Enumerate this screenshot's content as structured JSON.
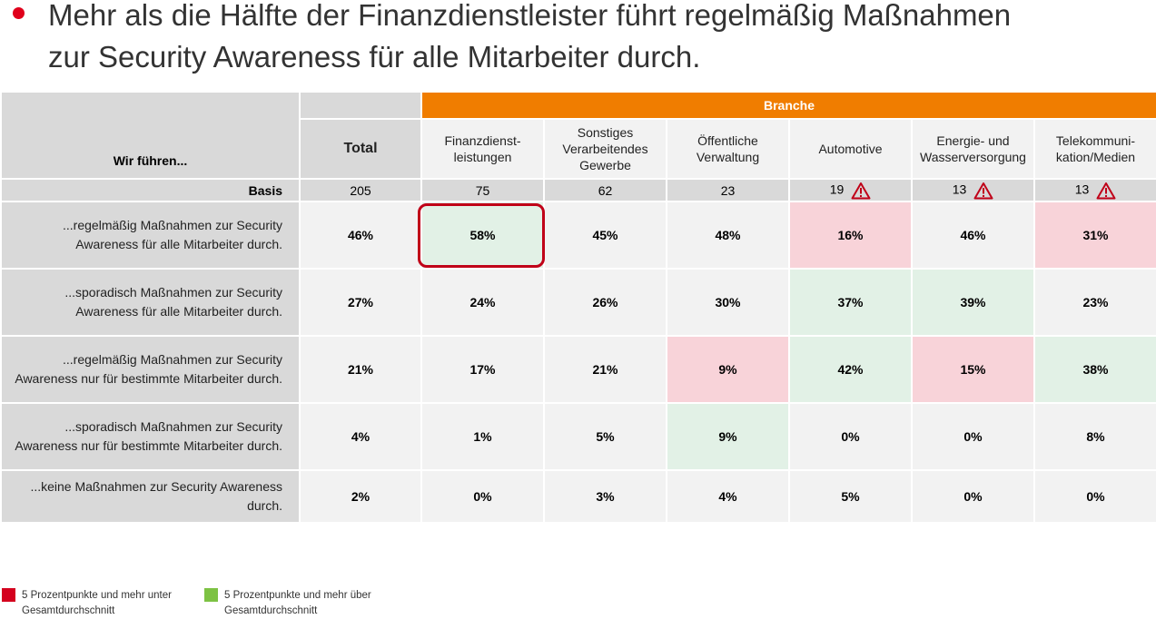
{
  "headline": "Mehr als die Hälfte der Finanzdienstleister führt regelmäßig Maßnahmen zur Security Awareness für alle Mitarbeiter durch.",
  "colors": {
    "accent_orange": "#f07d00",
    "bullet_red": "#e0001b",
    "below_avg": "#f8d3d9",
    "above_avg": "#e2f1e6",
    "legend_red": "#d4001e",
    "legend_green": "#7dc243"
  },
  "chart_data": {
    "type": "table",
    "group_header": "Branche",
    "row_header": "Wir führen...",
    "columns": [
      "Total",
      "Finanzdienst-leistungen",
      "Sonstiges Verarbeitendes Gewerbe",
      "Öffentliche Verwaltung",
      "Automotive",
      "Energie- und Wasserversorgung",
      "Telekommuni-kation/Medien"
    ],
    "basis_label": "Basis",
    "basis": [
      205,
      75,
      62,
      23,
      19,
      13,
      13
    ],
    "basis_warning": [
      false,
      false,
      false,
      false,
      true,
      true,
      true
    ],
    "rows": [
      {
        "label": "...regelmäßig Maßnahmen zur Security Awareness für alle Mitarbeiter durch.",
        "values": [
          "46%",
          "58%",
          "45%",
          "48%",
          "16%",
          "46%",
          "31%"
        ],
        "marks": [
          "",
          "green",
          "",
          "",
          "red",
          "",
          "red"
        ]
      },
      {
        "label": "...sporadisch Maßnahmen zur Security Awareness für alle Mitarbeiter durch.",
        "values": [
          "27%",
          "24%",
          "26%",
          "30%",
          "37%",
          "39%",
          "23%"
        ],
        "marks": [
          "",
          "",
          "",
          "",
          "green",
          "green",
          ""
        ]
      },
      {
        "label": "...regelmäßig Maßnahmen zur Security Awareness nur für bestimmte Mitarbeiter durch.",
        "values": [
          "21%",
          "17%",
          "21%",
          "9%",
          "42%",
          "15%",
          "38%"
        ],
        "marks": [
          "",
          "",
          "",
          "red",
          "green",
          "red",
          "green"
        ]
      },
      {
        "label": "...sporadisch Maßnahmen zur Security Awareness nur für bestimmte Mitarbeiter durch.",
        "values": [
          "4%",
          "1%",
          "5%",
          "9%",
          "0%",
          "0%",
          "8%"
        ],
        "marks": [
          "",
          "",
          "",
          "green",
          "",
          "",
          ""
        ]
      },
      {
        "label": "...keine Maßnahmen zur Security Awareness durch.",
        "values": [
          "2%",
          "0%",
          "3%",
          "4%",
          "5%",
          "0%",
          "0%"
        ],
        "marks": [
          "",
          "",
          "",
          "",
          "",
          "",
          ""
        ]
      }
    ]
  },
  "legend": {
    "below": "5 Prozentpunkte und mehr unter Gesamtdurchschnitt",
    "above": "5 Prozentpunkte und mehr über Gesamtdurchschnitt"
  }
}
